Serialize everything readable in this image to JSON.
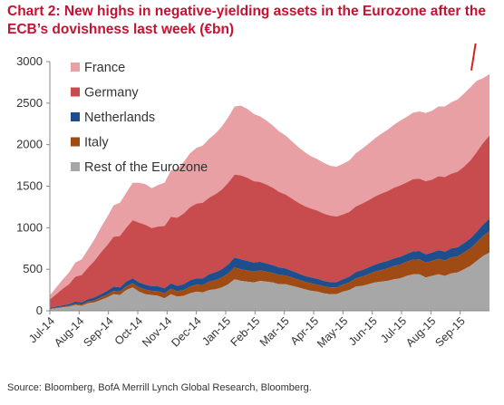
{
  "title": "Chart 2: New highs in negative-yielding assets in the Eurozone after the ECB’s dovishness last week (€bn)",
  "source": "Source: Bloomberg, BofA Merrill Lynch Global Research, Bloomberg.",
  "colors": {
    "France": "#e8a0a4",
    "Germany": "#c84c4e",
    "Netherlands": "#1f4e8c",
    "Italy": "#a04a14",
    "Rest of the Eurozone": "#a8a7a7",
    "arrow": "#d42027",
    "axis": "#888888",
    "text": "#333333"
  },
  "chart_data": {
    "type": "area",
    "stacked": true,
    "x_labels": [
      "Jul-14",
      "Aug-14",
      "Sep-14",
      "Oct-14",
      "Nov-14",
      "Dec-14",
      "Jan-15",
      "Feb-15",
      "Mar-15",
      "Apr-15",
      "May-15",
      "Jun-15",
      "Jul-15",
      "Aug-15",
      "Sep-15"
    ],
    "ylim": [
      0,
      3000
    ],
    "yticks": [
      0,
      500,
      1000,
      1500,
      2000,
      2500,
      3000
    ],
    "legend_position": "top-left",
    "annotation": "upward red arrow at latest data point",
    "series": [
      {
        "name": "Rest of the Eurozone",
        "values": [
          20,
          30,
          40,
          50,
          70,
          60,
          90,
          100,
          130,
          160,
          200,
          190,
          250,
          280,
          230,
          200,
          190,
          180,
          150,
          200,
          170,
          180,
          210,
          230,
          220,
          250,
          260,
          280,
          320,
          380,
          360,
          350,
          340,
          360,
          350,
          340,
          320,
          320,
          300,
          280,
          260,
          240,
          230,
          210,
          200,
          200,
          230,
          250,
          290,
          300,
          320,
          340,
          350,
          360,
          380,
          390,
          420,
          440,
          440,
          400,
          420,
          440,
          420,
          450,
          460,
          500,
          540,
          600,
          660,
          700
        ]
      },
      {
        "name": "Italy",
        "values": [
          5,
          8,
          10,
          12,
          15,
          15,
          20,
          25,
          30,
          35,
          40,
          40,
          45,
          50,
          50,
          55,
          50,
          55,
          60,
          65,
          65,
          70,
          80,
          85,
          90,
          100,
          110,
          120,
          130,
          140,
          140,
          135,
          130,
          125,
          120,
          115,
          110,
          105,
          100,
          95,
          90,
          90,
          85,
          85,
          80,
          80,
          85,
          90,
          100,
          110,
          120,
          130,
          140,
          150,
          160,
          165,
          170,
          175,
          180,
          180,
          180,
          185,
          185,
          190,
          195,
          200,
          210,
          220,
          240,
          260
        ]
      },
      {
        "name": "Netherlands",
        "values": [
          10,
          12,
          15,
          18,
          25,
          25,
          30,
          35,
          40,
          45,
          50,
          50,
          55,
          60,
          60,
          60,
          55,
          60,
          60,
          65,
          65,
          70,
          75,
          75,
          80,
          90,
          95,
          100,
          110,
          120,
          120,
          115,
          110,
          105,
          100,
          95,
          90,
          85,
          80,
          75,
          70,
          70,
          70,
          65,
          65,
          65,
          65,
          70,
          75,
          80,
          80,
          85,
          90,
          90,
          90,
          95,
          95,
          100,
          100,
          100,
          100,
          105,
          105,
          110,
          110,
          115,
          120,
          130,
          140,
          150
        ]
      },
      {
        "name": "Germany",
        "values": [
          100,
          150,
          200,
          240,
          300,
          330,
          380,
          440,
          500,
          550,
          600,
          620,
          650,
          700,
          720,
          720,
          700,
          720,
          750,
          800,
          820,
          850,
          880,
          900,
          910,
          920,
          940,
          960,
          980,
          1000,
          1010,
          1000,
          980,
          960,
          950,
          930,
          910,
          890,
          870,
          850,
          840,
          830,
          820,
          810,
          800,
          790,
          780,
          780,
          790,
          800,
          810,
          820,
          830,
          840,
          850,
          860,
          860,
          870,
          870,
          880,
          880,
          890,
          900,
          900,
          910,
          920,
          940,
          960,
          980,
          1000
        ]
      },
      {
        "name": "France",
        "values": [
          50,
          80,
          110,
          140,
          170,
          190,
          220,
          260,
          300,
          340,
          380,
          400,
          420,
          450,
          480,
          490,
          480,
          500,
          520,
          560,
          590,
          620,
          650,
          670,
          690,
          710,
          730,
          760,
          790,
          820,
          840,
          830,
          810,
          790,
          770,
          750,
          730,
          710,
          690,
          670,
          650,
          630,
          620,
          610,
          600,
          600,
          610,
          620,
          640,
          660,
          680,
          700,
          720,
          740,
          760,
          780,
          790,
          800,
          810,
          820,
          830,
          840,
          850,
          860,
          870,
          880,
          880,
          860,
          780,
          740
        ]
      }
    ]
  },
  "legend": [
    {
      "name": "France",
      "color_key": "France"
    },
    {
      "name": "Germany",
      "color_key": "Germany"
    },
    {
      "name": "Netherlands",
      "color_key": "Netherlands"
    },
    {
      "name": "Italy",
      "color_key": "Italy"
    },
    {
      "name": "Rest of the Eurozone",
      "color_key": "Rest of the Eurozone"
    }
  ]
}
